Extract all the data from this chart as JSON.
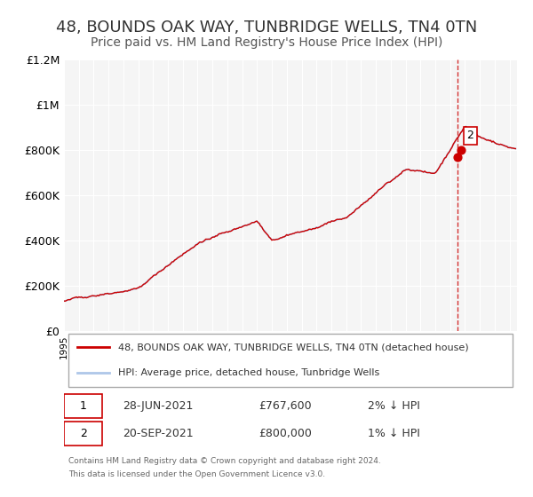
{
  "title": "48, BOUNDS OAK WAY, TUNBRIDGE WELLS, TN4 0TN",
  "subtitle": "Price paid vs. HM Land Registry's House Price Index (HPI)",
  "title_fontsize": 13,
  "subtitle_fontsize": 10,
  "ylabel": "",
  "ylim": [
    0,
    1200000
  ],
  "yticks": [
    0,
    200000,
    400000,
    600000,
    800000,
    1000000,
    1200000
  ],
  "ytick_labels": [
    "£0",
    "£200K",
    "£400K",
    "£600K",
    "£800K",
    "£1M",
    "£1.2M"
  ],
  "xlim_start": 1995.0,
  "xlim_end": 2025.5,
  "background_color": "#ffffff",
  "plot_bg_color": "#f5f5f5",
  "grid_color": "#ffffff",
  "hpi_line_color": "#aec6e8",
  "price_line_color": "#cc0000",
  "dot1_color": "#cc0000",
  "dot2_color": "#cc0000",
  "vline_color": "#cc0000",
  "annotation1": {
    "num": "1",
    "date": "28-JUN-2021",
    "price": "£767,600",
    "hpi": "2% ↓ HPI",
    "x": 2021.49
  },
  "annotation2": {
    "num": "2",
    "date": "20-SEP-2021",
    "price": "£800,000",
    "hpi": "1% ↓ HPI",
    "x": 2021.72
  },
  "legend_label1": "48, BOUNDS OAK WAY, TUNBRIDGE WELLS, TN4 0TN (detached house)",
  "legend_label2": "HPI: Average price, detached house, Tunbridge Wells",
  "footer1": "Contains HM Land Registry data © Crown copyright and database right 2024.",
  "footer2": "This data is licensed under the Open Government Licence v3.0."
}
